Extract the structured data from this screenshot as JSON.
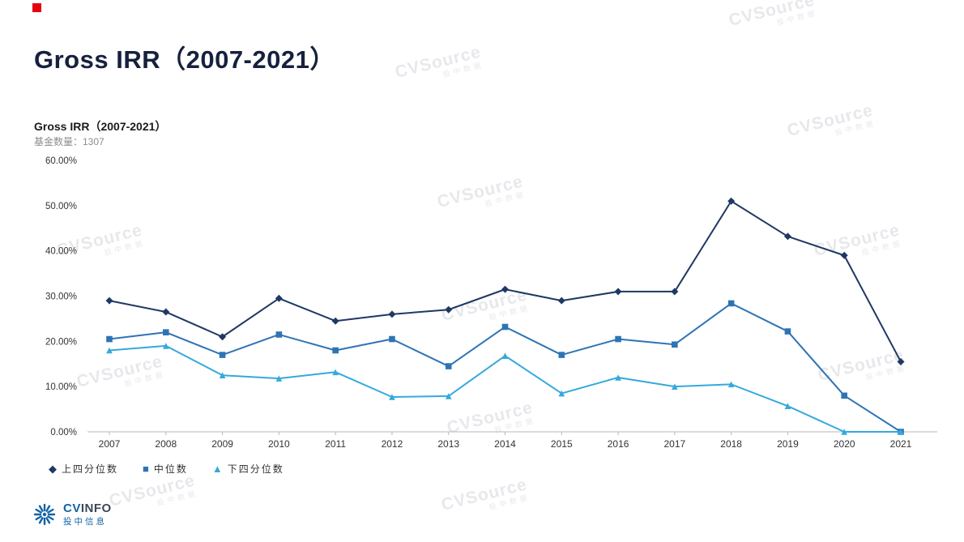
{
  "page": {
    "title": "Gross IRR（2007-2021）",
    "brand_color": "#e60012"
  },
  "chart": {
    "title": "Gross IRR（2007-2021）",
    "fund_count_label": "基金数量：1307"
  },
  "chart_data": {
    "type": "line",
    "title": "Gross IRR（2007-2021）",
    "subtitle": "基金数量：1307",
    "x": [
      2007,
      2008,
      2009,
      2010,
      2011,
      2012,
      2013,
      2014,
      2015,
      2016,
      2017,
      2018,
      2019,
      2020,
      2021
    ],
    "series": [
      {
        "name": "上四分位数",
        "marker": "diamond",
        "color": "#1f3864",
        "values": [
          29,
          26.5,
          21,
          29.5,
          24.5,
          26,
          27,
          31.5,
          29,
          31,
          31,
          51,
          43.2,
          39,
          15.5
        ]
      },
      {
        "name": "中位数",
        "marker": "square",
        "color": "#2e74b5",
        "values": [
          20.5,
          22,
          17,
          21.5,
          18,
          20.5,
          14.5,
          23.2,
          17,
          20.5,
          19.3,
          28.4,
          22.2,
          8,
          0
        ]
      },
      {
        "name": "下四分位数",
        "marker": "triangle",
        "color": "#35a9dc",
        "values": [
          18,
          19,
          12.5,
          11.8,
          13.2,
          7.7,
          7.9,
          16.8,
          8.5,
          12,
          10,
          10.5,
          5.7,
          0,
          0
        ]
      }
    ],
    "ylim": [
      0,
      60
    ],
    "ytick_step": 10,
    "ylabels": [
      "0.00%",
      "10.00%",
      "20.00%",
      "30.00%",
      "40.00%",
      "50.00%",
      "60.00%"
    ],
    "grid": false,
    "legend_position": "bottom-left"
  },
  "watermark": {
    "line1": "CVSource",
    "line2": "投中数据"
  },
  "footer": {
    "logo_cv": "CV",
    "logo_info": "INFO",
    "logo_subtext": "投中信息"
  }
}
